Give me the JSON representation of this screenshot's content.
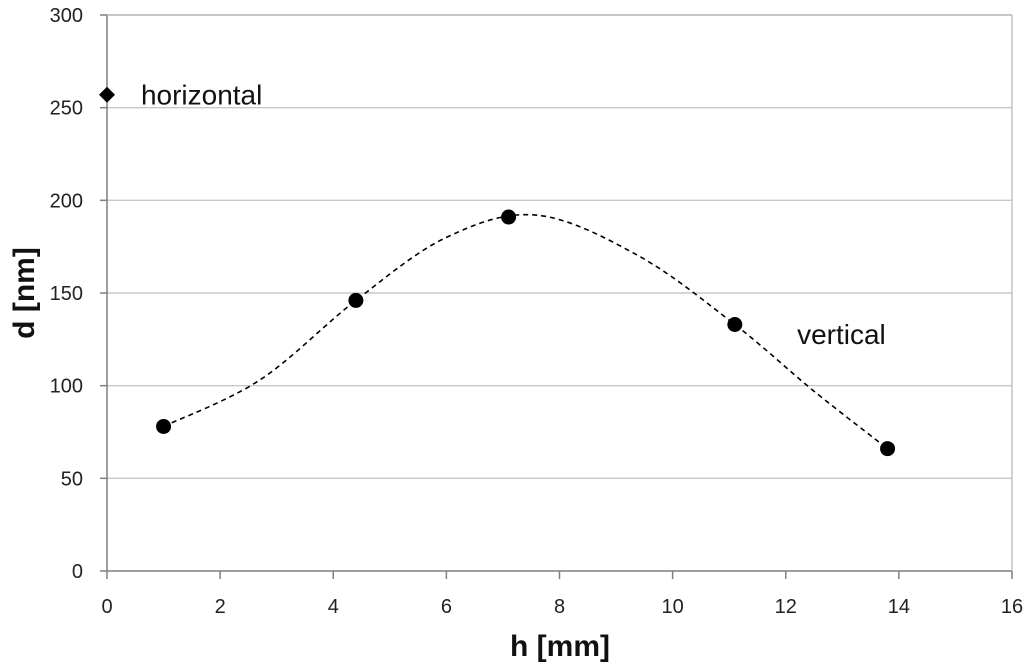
{
  "chart_data": {
    "type": "scatter",
    "xlabel": "h [mm]",
    "ylabel": "d [nm]",
    "xlim": [
      0,
      16
    ],
    "ylim": [
      0,
      300
    ],
    "x_ticks": [
      0,
      2,
      4,
      6,
      8,
      10,
      12,
      14,
      16
    ],
    "y_ticks": [
      0,
      50,
      100,
      150,
      200,
      250,
      300
    ],
    "grid": "horizontal",
    "series": [
      {
        "name": "horizontal",
        "marker": "diamond",
        "color": "#000000",
        "points": [
          {
            "x": 0,
            "y": 257
          }
        ]
      },
      {
        "name": "vertical",
        "marker": "circle",
        "color": "#000000",
        "points": [
          {
            "x": 1.0,
            "y": 78
          },
          {
            "x": 4.4,
            "y": 146
          },
          {
            "x": 7.1,
            "y": 191
          },
          {
            "x": 11.1,
            "y": 133
          },
          {
            "x": 13.8,
            "y": 66
          }
        ],
        "fit": {
          "style": "dashed",
          "points": [
            {
              "x": 1.0,
              "y": 78
            },
            {
              "x": 2.7,
              "y": 103
            },
            {
              "x": 4.4,
              "y": 146
            },
            {
              "x": 6.0,
              "y": 180
            },
            {
              "x": 7.6,
              "y": 192
            },
            {
              "x": 9.4,
              "y": 170
            },
            {
              "x": 11.1,
              "y": 133
            },
            {
              "x": 12.5,
              "y": 97
            },
            {
              "x": 13.8,
              "y": 66
            }
          ]
        }
      }
    ],
    "annotations": [
      {
        "text": "horizontal",
        "x": 0.6,
        "y": 257
      },
      {
        "text": "vertical",
        "x": 12.2,
        "y": 128
      }
    ]
  }
}
